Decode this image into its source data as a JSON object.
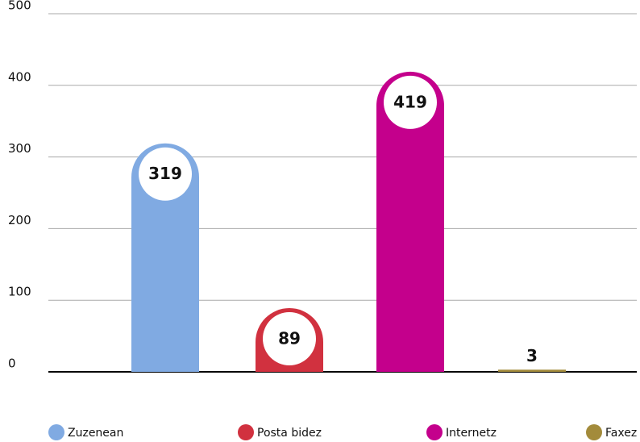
{
  "chart_data": {
    "type": "bar",
    "categories": [
      "Zuzenean",
      "Posta bidez",
      "Internetz",
      "Faxez"
    ],
    "values": [
      319,
      89,
      419,
      3
    ],
    "colors": [
      "#80aae2",
      "#d1313f",
      "#c4008c",
      "#a38b3b"
    ],
    "ylim": [
      0,
      500
    ],
    "yticks": [
      0,
      100,
      200,
      300,
      400,
      500
    ],
    "grid": true,
    "legend": "bottom"
  }
}
